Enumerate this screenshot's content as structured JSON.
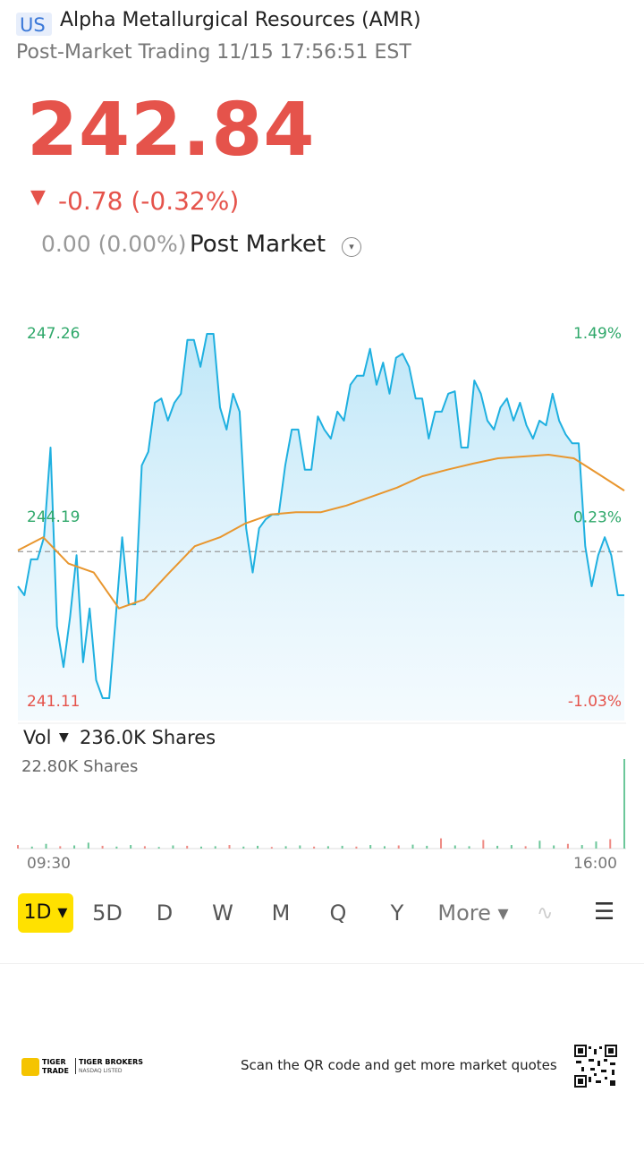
{
  "header": {
    "market": "US",
    "name": "Alpha Metallurgical Resources (AMR)",
    "status": "Post-Market Trading 11/15 17:56:51 EST"
  },
  "quote": {
    "price": "242.84",
    "change": "-0.78 (-0.32%)",
    "post_change": "0.00 (0.00%)",
    "post_label": "Post Market"
  },
  "chart_data": {
    "type": "line",
    "ylim": [
      241.11,
      247.26
    ],
    "yticks": [
      241.11,
      244.19,
      247.26
    ],
    "y2lim": [
      -1.03,
      1.49
    ],
    "y2ticks": [
      {
        "value": -1.03,
        "label": "-1.03%"
      },
      {
        "value": 0.23,
        "label": "0.23%"
      },
      {
        "value": 1.49,
        "label": "1.49%"
      }
    ],
    "reference": 243.62,
    "x_labels": [
      "09:30",
      "16:00"
    ],
    "series": [
      {
        "color": "#1fb0e0",
        "values": [
          243.04,
          242.89,
          243.49,
          243.49,
          243.86,
          245.36,
          242.37,
          241.69,
          242.52,
          243.56,
          241.77,
          242.67,
          241.47,
          241.17,
          241.17,
          242.52,
          243.86,
          242.74,
          242.74,
          245.06,
          245.29,
          246.11,
          246.18,
          245.81,
          246.11,
          246.26,
          247.16,
          247.16,
          246.71,
          247.26,
          247.26,
          246.03,
          245.66,
          246.26,
          245.96,
          244.01,
          243.27,
          244.01,
          244.16,
          244.24,
          244.24,
          245.06,
          245.66,
          245.66,
          244.99,
          244.99,
          245.88,
          245.66,
          245.51,
          245.96,
          245.81,
          246.41,
          246.56,
          246.56,
          247.01,
          246.41,
          246.78,
          246.26,
          246.86,
          246.93,
          246.71,
          246.18,
          246.18,
          245.51,
          245.96,
          245.96,
          246.26,
          246.3,
          245.36,
          245.36,
          246.48,
          246.26,
          245.81,
          245.66,
          246.03,
          246.18,
          245.81,
          246.11,
          245.73,
          245.51,
          245.81,
          245.73,
          246.26,
          245.81,
          245.58,
          245.43,
          245.43,
          243.71,
          243.04,
          243.56,
          243.86,
          243.56,
          242.89,
          242.89
        ]
      },
      {
        "color": "#e8962e",
        "values": [
          243.64,
          243.86,
          243.42,
          243.27,
          242.67,
          242.82,
          243.27,
          243.71,
          243.86,
          244.09,
          244.24,
          244.28,
          244.28,
          244.39,
          244.54,
          244.69,
          244.88,
          244.99,
          245.09,
          245.18,
          245.21,
          245.24,
          245.18,
          244.91,
          244.64
        ]
      }
    ]
  },
  "volume": {
    "label": "Vol",
    "total": "236.0K Shares",
    "max_label": "22.80K Shares",
    "ylim": [
      0,
      22.8
    ],
    "values": [
      0.9,
      0.5,
      1.2,
      0.6,
      0.8,
      1.5,
      0.7,
      0.5,
      0.9,
      0.6,
      0.4,
      0.8,
      0.7,
      0.5,
      0.6,
      0.9,
      0.5,
      0.7,
      0.4,
      0.6,
      0.8,
      0.5,
      0.6,
      0.7,
      0.5,
      0.9,
      0.6,
      0.8,
      1.0,
      0.7,
      2.6,
      0.8,
      0.6,
      2.2,
      0.7,
      0.9,
      0.6,
      2.0,
      0.8,
      1.2,
      0.9,
      1.8,
      2.4,
      22.8
    ]
  },
  "tabs": [
    "1D",
    "5D",
    "D",
    "W",
    "M",
    "Q",
    "Y",
    "More"
  ],
  "footer": {
    "brand": "TIGER TRADE",
    "broker": "TIGER BROKERS",
    "listed": "NASDAQ LISTED",
    "cta": "Scan the QR code and get more market quotes"
  }
}
